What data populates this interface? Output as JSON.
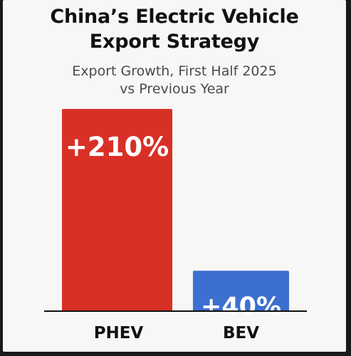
{
  "chart_data": {
    "type": "bar",
    "title": "China’s Electric Vehicle\nExport Strategy",
    "subtitle": "Export Growth, First Half 2025\nvs Previous Year",
    "categories": [
      "PHEV",
      "BEV"
    ],
    "values": [
      210,
      40
    ],
    "data_labels": [
      "+210%",
      "+40%"
    ],
    "colors": [
      "#d93025",
      "#3d6fd0"
    ],
    "axis_color": "#111111",
    "xlabel": "",
    "ylabel": "",
    "ylim": [
      0,
      200
    ],
    "grid": false,
    "legend": "none"
  }
}
